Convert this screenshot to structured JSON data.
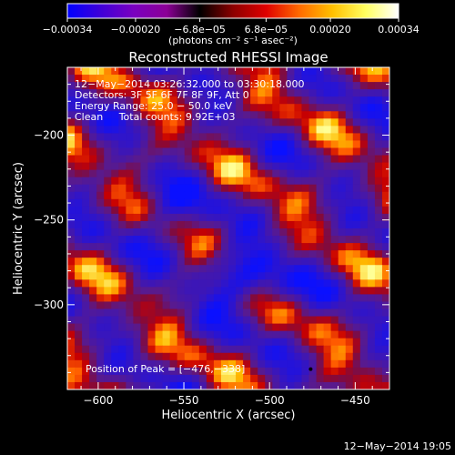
{
  "colorbar": {
    "tick_labels": [
      "−0.00034",
      "−0.00020",
      "−6.8e−05",
      "6.8e−05",
      "0.00020",
      "0.00034"
    ],
    "tick_values": [
      -0.00034,
      -0.0002,
      -6.8e-05,
      6.8e-05,
      0.0002,
      0.00034
    ],
    "range": [
      -0.00034,
      0.00034
    ],
    "unit_label": "(photons cm⁻² s⁻¹ asec⁻²)",
    "stops": [
      "#0000ff",
      "#3f00d8",
      "#7a00c0",
      "#8c0096",
      "#000000",
      "#8c0000",
      "#e00000",
      "#ff6a00",
      "#ffc000",
      "#ffff60",
      "#ffffff"
    ]
  },
  "chart_data": {
    "type": "heatmap",
    "title": "Reconstructed RHESSI Image",
    "xlabel": "Heliocentric X (arcsec)",
    "ylabel": "Heliocentric Y (arcsec)",
    "xlim": [
      -618,
      -430
    ],
    "ylim": [
      -350,
      -160
    ],
    "x_ticks": [
      -600,
      -550,
      -500,
      -450
    ],
    "x_tick_labels": [
      "−600",
      "−550",
      "−500",
      "−450"
    ],
    "y_ticks": [
      -200,
      -250,
      -300
    ],
    "y_tick_labels": [
      "−200",
      "−250",
      "−300"
    ],
    "peak_position": [
      -476,
      -338
    ],
    "annotations": [
      "12−May−2014 03:26:32.000 to 03:30:18.000",
      "Detectors: 3F 5F 6F 7F 8F 9F, Att 0",
      "Energy Range: 25.0 − 50.0 keV",
      "Clean     Total counts: 9.92E+03"
    ],
    "peak_label": "Position of Peak = [−476,−338]",
    "grid": false
  },
  "footer": {
    "timestamp": "12−May−2014 19:05"
  }
}
